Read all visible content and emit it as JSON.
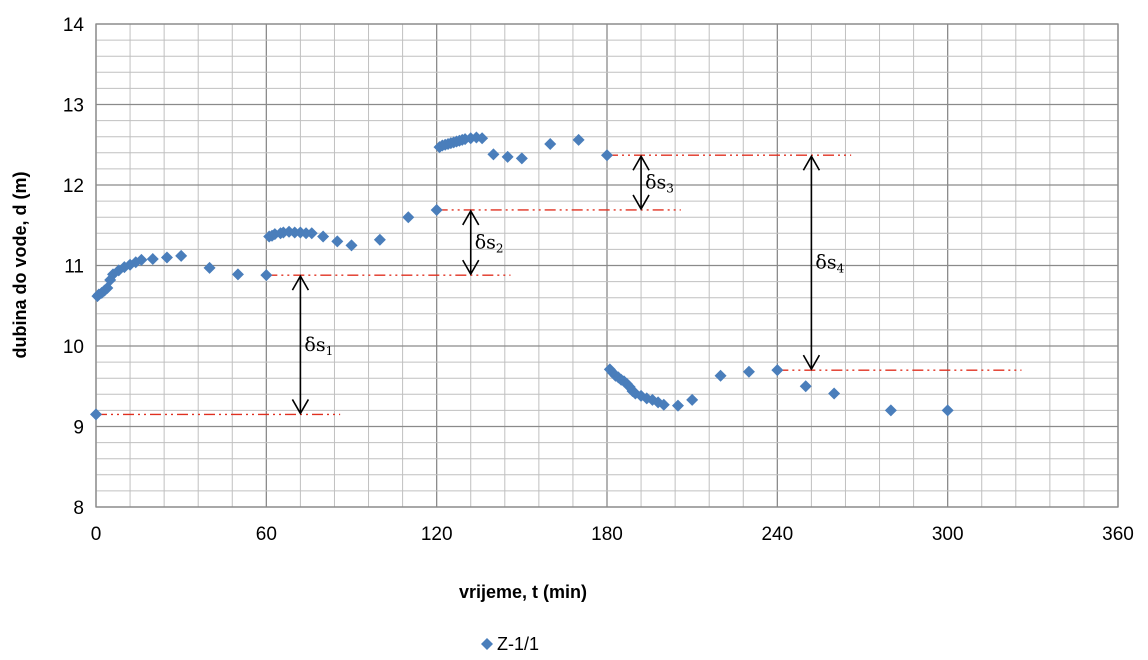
{
  "chart_data": {
    "type": "scatter",
    "xlabel": "vrijeme, t (min)",
    "ylabel": "dubina do vode, d (m)",
    "xlim": [
      0,
      360
    ],
    "ylim": [
      8,
      14
    ],
    "x_ticks": [
      0,
      60,
      120,
      180,
      240,
      300,
      360
    ],
    "y_ticks": [
      8,
      9,
      10,
      11,
      12,
      13,
      14
    ],
    "x_minor_step": 12,
    "y_minor_step": 0.2,
    "grid": true,
    "legend": "bottom-center",
    "colors": {
      "marker": "#4a7ebb",
      "guide": "#e03020",
      "arrow": "#000000",
      "grid_major": "#8a8a8a",
      "grid_minor": "#c0c0c0"
    },
    "series": [
      {
        "name": "Z-1/1",
        "marker": "diamond",
        "points": [
          [
            0,
            9.15
          ],
          [
            0.5,
            10.62
          ],
          [
            1,
            10.64
          ],
          [
            2,
            10.66
          ],
          [
            3,
            10.69
          ],
          [
            4,
            10.72
          ],
          [
            5,
            10.82
          ],
          [
            6,
            10.89
          ],
          [
            8,
            10.94
          ],
          [
            10,
            10.98
          ],
          [
            12,
            11.01
          ],
          [
            14,
            11.04
          ],
          [
            16,
            11.07
          ],
          [
            20,
            11.08
          ],
          [
            25,
            11.1
          ],
          [
            30,
            11.12
          ],
          [
            40,
            10.97
          ],
          [
            50,
            10.89
          ],
          [
            60,
            10.88
          ],
          [
            61,
            11.36
          ],
          [
            62,
            11.37
          ],
          [
            63,
            11.39
          ],
          [
            65,
            11.4
          ],
          [
            66,
            11.41
          ],
          [
            68,
            11.42
          ],
          [
            70,
            11.41
          ],
          [
            72,
            11.41
          ],
          [
            74,
            11.4
          ],
          [
            76,
            11.4
          ],
          [
            80,
            11.36
          ],
          [
            85,
            11.3
          ],
          [
            90,
            11.25
          ],
          [
            100,
            11.32
          ],
          [
            110,
            11.6
          ],
          [
            120,
            11.69
          ],
          [
            121,
            12.47
          ],
          [
            122,
            12.49
          ],
          [
            123,
            12.5
          ],
          [
            124,
            12.51
          ],
          [
            125,
            12.52
          ],
          [
            126,
            12.53
          ],
          [
            127,
            12.54
          ],
          [
            128,
            12.55
          ],
          [
            129,
            12.56
          ],
          [
            130,
            12.57
          ],
          [
            132,
            12.58
          ],
          [
            134,
            12.59
          ],
          [
            136,
            12.58
          ],
          [
            140,
            12.38
          ],
          [
            145,
            12.35
          ],
          [
            150,
            12.33
          ],
          [
            160,
            12.51
          ],
          [
            170,
            12.56
          ],
          [
            180,
            12.37
          ],
          [
            181,
            9.71
          ],
          [
            182,
            9.67
          ],
          [
            183,
            9.63
          ],
          [
            184,
            9.61
          ],
          [
            185,
            9.58
          ],
          [
            186,
            9.56
          ],
          [
            187,
            9.53
          ],
          [
            188,
            9.49
          ],
          [
            189,
            9.44
          ],
          [
            190,
            9.41
          ],
          [
            192,
            9.38
          ],
          [
            194,
            9.35
          ],
          [
            196,
            9.33
          ],
          [
            198,
            9.3
          ],
          [
            200,
            9.27
          ],
          [
            205,
            9.26
          ],
          [
            210,
            9.33
          ],
          [
            220,
            9.63
          ],
          [
            230,
            9.68
          ],
          [
            240,
            9.7
          ],
          [
            250,
            9.5
          ],
          [
            260,
            9.41
          ],
          [
            280,
            9.2
          ],
          [
            300,
            9.2
          ]
        ]
      }
    ],
    "guides": [
      {
        "x": [
          0,
          86
        ],
        "y": 9.15
      },
      {
        "x": [
          60,
          146
        ],
        "y": 10.88
      },
      {
        "x": [
          120,
          206
        ],
        "y": 11.69
      },
      {
        "x": [
          180,
          266
        ],
        "y": 12.37
      },
      {
        "x": [
          240,
          326
        ],
        "y": 9.7
      }
    ],
    "annotations": [
      {
        "label": "δs",
        "sub": "1",
        "x": 72,
        "y1": 9.15,
        "y2": 10.88
      },
      {
        "label": "δs",
        "sub": "2",
        "x": 132,
        "y1": 10.88,
        "y2": 11.69
      },
      {
        "label": "δs",
        "sub": "3",
        "x": 192,
        "y1": 11.69,
        "y2": 12.37
      },
      {
        "label": "δs",
        "sub": "4",
        "x": 252,
        "y1": 9.7,
        "y2": 12.37
      }
    ]
  }
}
